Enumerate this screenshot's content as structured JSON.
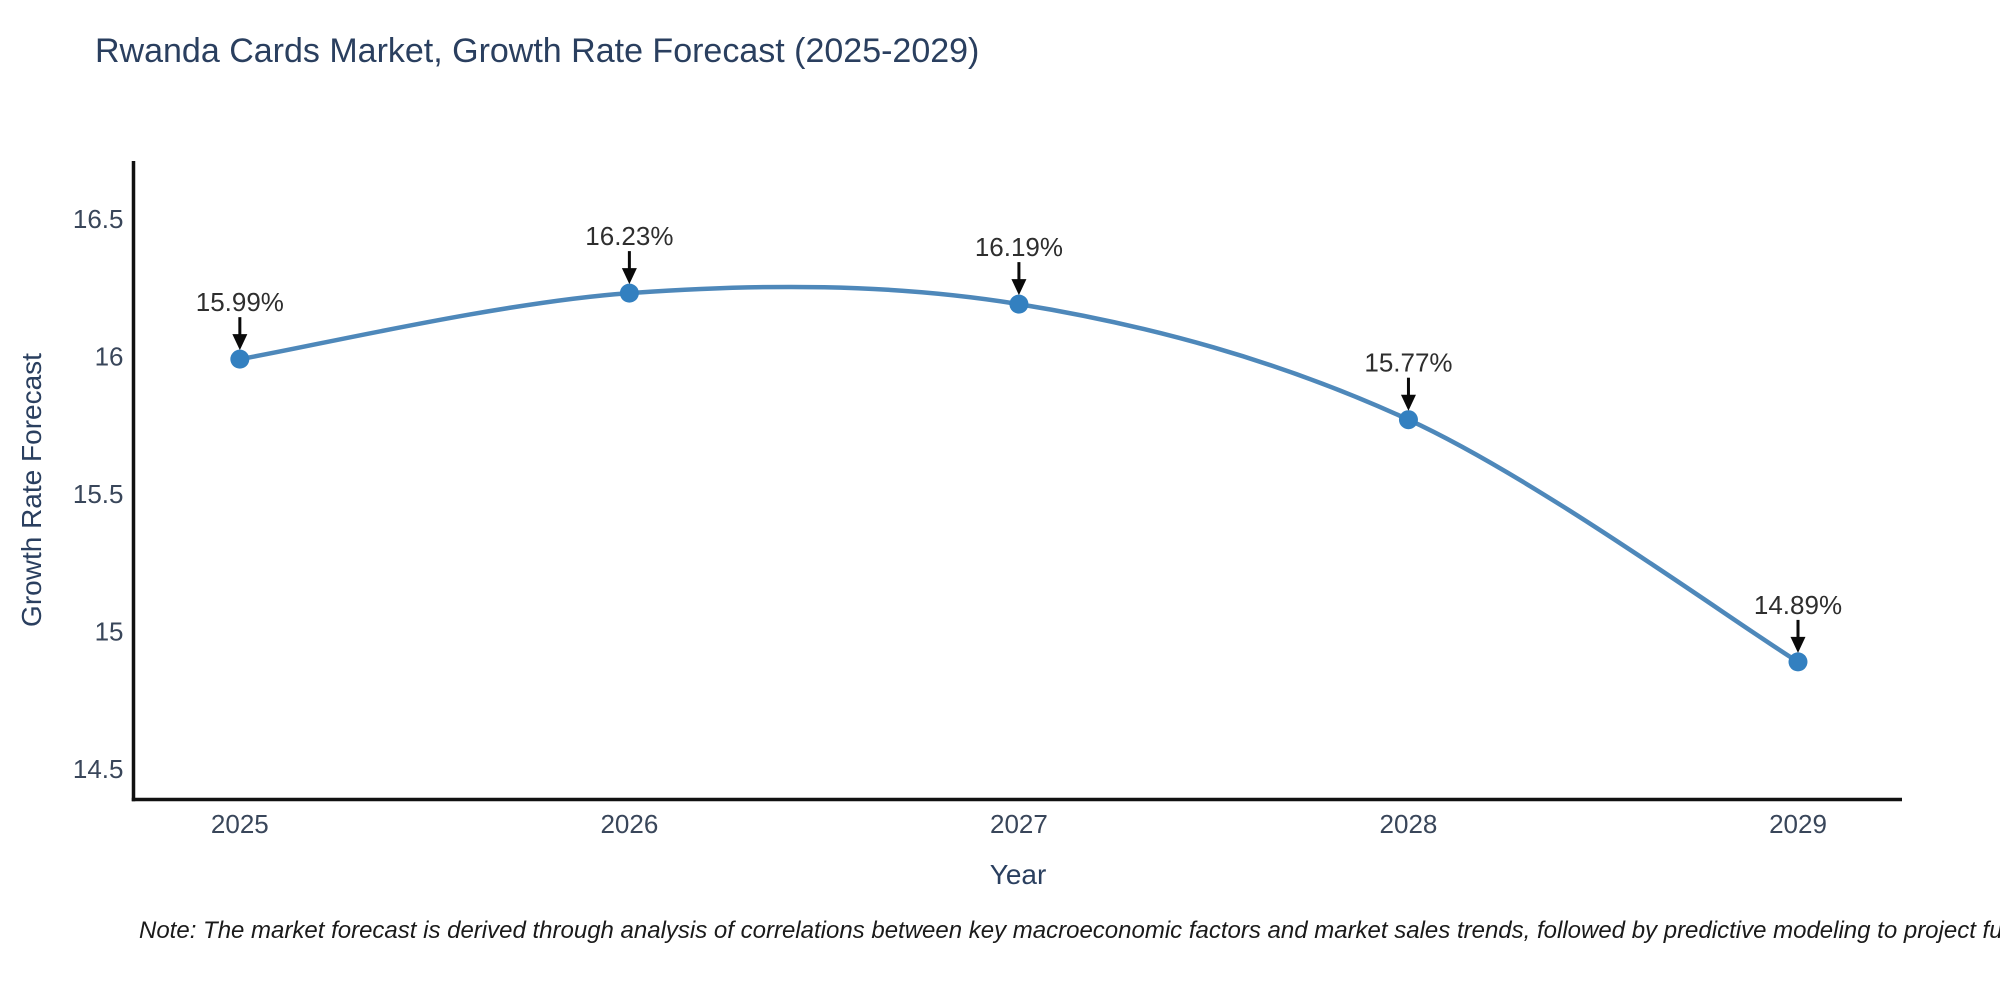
{
  "footnote": {
    "text": "Note: The market forecast is derived through analysis of correlations between key macroeconomic factors and market sales trends, followed by predictive modeling to project future sal"
  },
  "chart_data": {
    "type": "line",
    "title": "Rwanda Cards Market, Growth Rate Forecast (2025-2029)",
    "xlabel": "Year",
    "ylabel": "Growth Rate Forecast",
    "x": [
      2025,
      2026,
      2027,
      2028,
      2029
    ],
    "y": [
      15.99,
      16.23,
      16.19,
      15.77,
      14.89
    ],
    "point_labels": [
      "15.99%",
      "16.23%",
      "16.19%",
      "15.77%",
      "14.89%"
    ],
    "x_ticks": [
      "2025",
      "2026",
      "2027",
      "2028",
      "2029"
    ],
    "y_ticks": [
      "16.5",
      "16",
      "15.5",
      "15",
      "14.5"
    ],
    "y_tick_values": [
      16.5,
      16.0,
      15.5,
      15.0,
      14.5
    ],
    "xlim": [
      2024.727,
      2029.267
    ],
    "ylim": [
      14.39,
      16.71
    ],
    "grid": false,
    "legend": "none",
    "line_smoothing": "spline",
    "colors": {
      "line": "#4e88ba",
      "marker": "#3380c0",
      "axis": "#111111",
      "tick_text": "#39465a",
      "title_text": "#2a3f5f",
      "annotation_text": "#2e2e2e",
      "arrow": "#0a0a0a"
    }
  }
}
